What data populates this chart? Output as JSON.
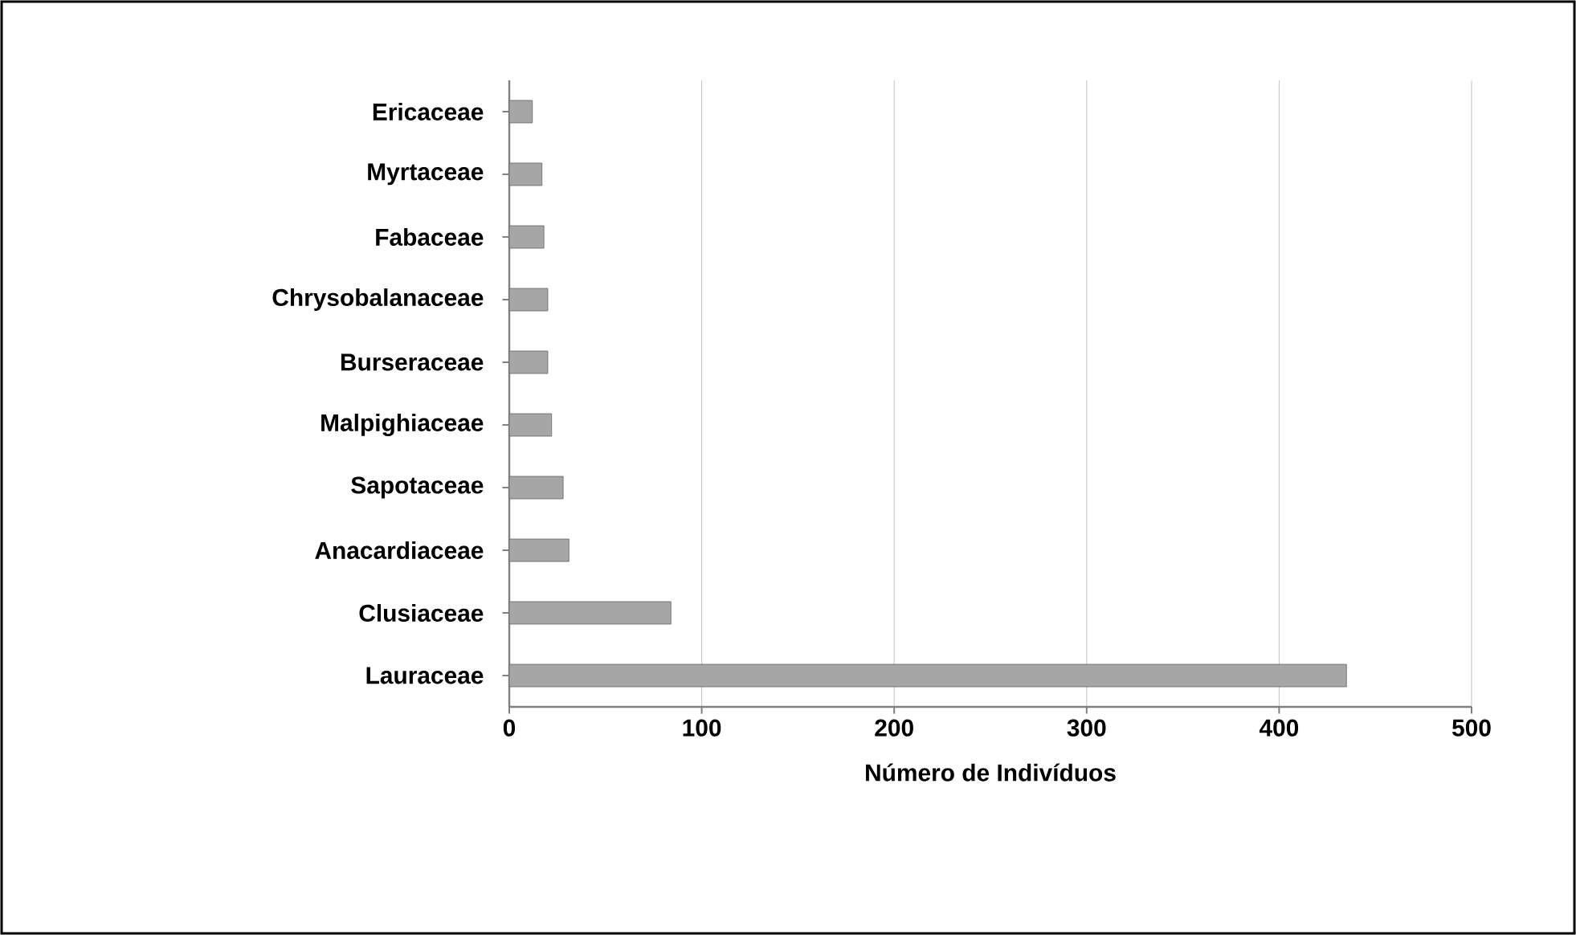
{
  "chart_data": {
    "type": "bar",
    "orientation": "horizontal",
    "xlabel": "Número de Indivíduos",
    "categories": [
      "Ericaceae",
      "Myrtaceae",
      "Fabaceae",
      "Chrysobalanaceae",
      "Burseraceae",
      "Malpighiaceae",
      "Sapotaceae",
      "Anacardiaceae",
      "Clusiaceae",
      "Lauraceae"
    ],
    "values": [
      12,
      17,
      18,
      20,
      20,
      22,
      28,
      31,
      84,
      435
    ],
    "color": "#a6a6a6",
    "xlim": [
      0,
      500
    ],
    "xticks": [
      0,
      100,
      200,
      300,
      400,
      500
    ],
    "grid": "x"
  }
}
